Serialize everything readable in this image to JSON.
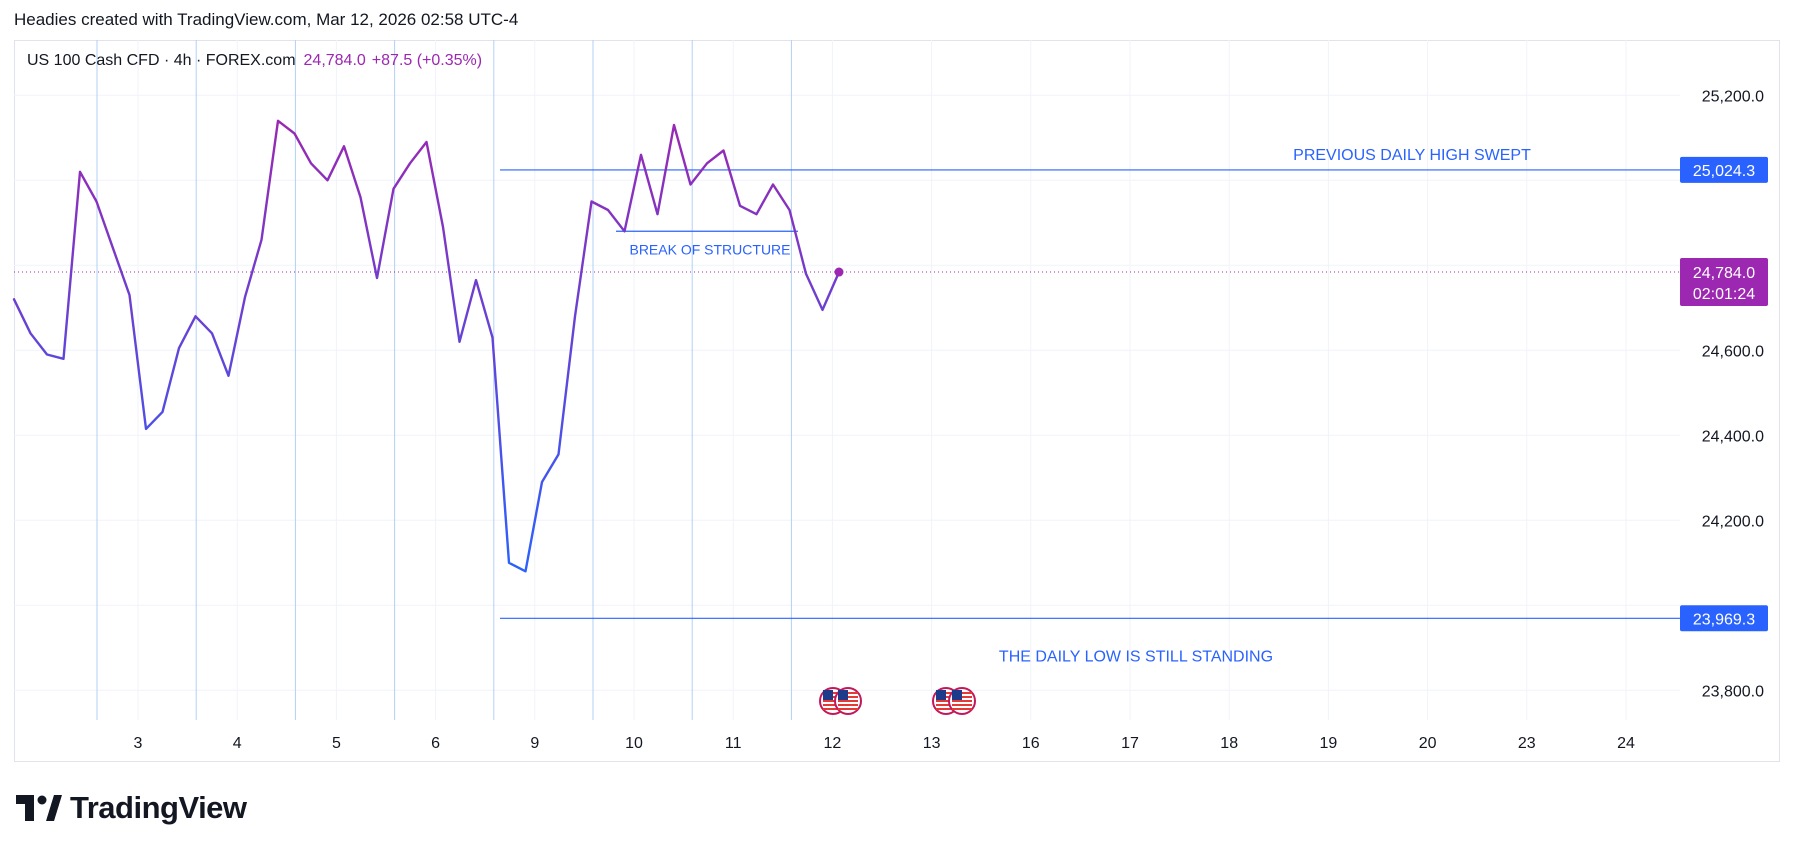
{
  "header": {
    "text": "Headies created with TradingView.com, Mar 12, 2026 02:58 UTC-4"
  },
  "legend": {
    "symbol": "US 100 Cash CFD · 4h · FOREX.com",
    "price": "24,784.0",
    "change": "+87.5 (+0.35%)"
  },
  "footer": {
    "brand": "TradingView"
  },
  "colors": {
    "line_start": "#2962ff",
    "line_end": "#9c27b0",
    "annotation": "#2962ff",
    "current_tag": "#9c27b0",
    "level_tag": "#2962ff",
    "grid": "#f0f3fa",
    "session": "#b2d0f5"
  },
  "chart_data": {
    "type": "line",
    "title": "",
    "xlabel": "",
    "ylabel": "",
    "ylim": [
      23730,
      25330
    ],
    "y_ticks": [
      "25,200.0",
      "24,600.0",
      "24,400.0",
      "24,200.0",
      "23,800.0"
    ],
    "x_tick_labels": [
      "3",
      "4",
      "5",
      "6",
      "9",
      "10",
      "11",
      "12",
      "13",
      "16",
      "17",
      "18",
      "19",
      "20",
      "23",
      "24"
    ],
    "series": [
      {
        "values": [
          24720,
          24640,
          24590,
          24580,
          25020,
          24950,
          24840,
          24730,
          24415,
          24455,
          24605,
          24680,
          24640,
          24540,
          24725,
          24860,
          25140,
          25110,
          25040,
          25000,
          25080,
          24960,
          24770,
          24980,
          25040,
          25090,
          24890,
          24620,
          24765,
          24630,
          24100,
          24080,
          24290,
          24355,
          24680,
          24950,
          24930,
          24880,
          25060,
          24920,
          25130,
          24990,
          25040,
          25070,
          24940,
          24920,
          24990,
          24930,
          24780,
          24695,
          24784
        ]
      }
    ],
    "horizontal_levels": [
      {
        "value": 25024.3,
        "label": "25,024.3",
        "annotation": "PREVIOUS DAILY HIGH SWEPT"
      },
      {
        "value": 23969.3,
        "label": "23,969.3",
        "annotation": "THE DAILY LOW IS STILL STANDING"
      }
    ],
    "current_price": {
      "value": 24784.0,
      "label": "24,784.0",
      "countdown": "02:01:24"
    },
    "break_of_structure": {
      "label": "BREAK OF STRUCTURE",
      "value": 24880
    }
  }
}
